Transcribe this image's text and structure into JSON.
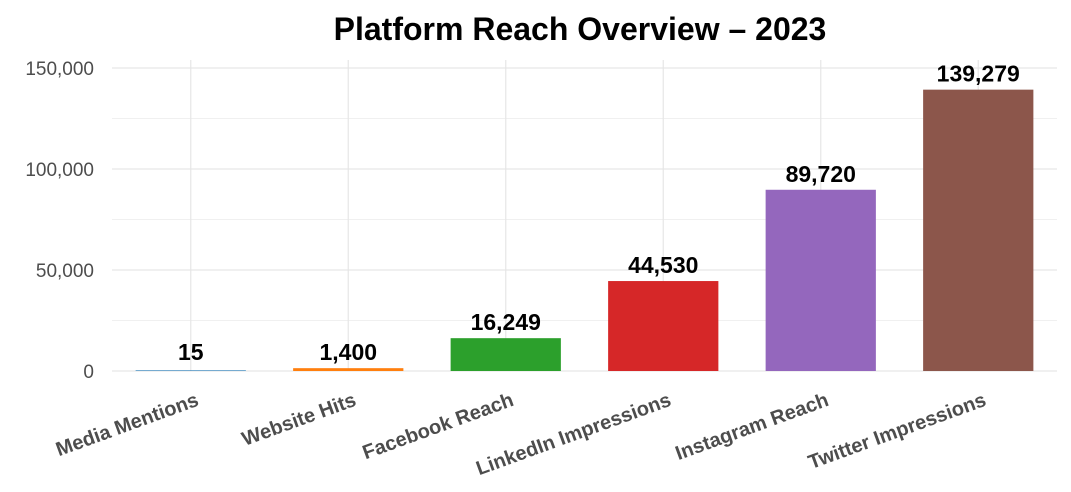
{
  "chart_data": {
    "type": "bar",
    "title": "Platform Reach Overview – 2023",
    "xlabel": "",
    "ylabel": "",
    "categories": [
      "Media Mentions",
      "Website Hits",
      "Facebook Reach",
      "LinkedIn Impressions",
      "Instagram Reach",
      "Twitter Impressions"
    ],
    "values": [
      15,
      1400,
      16249,
      44530,
      89720,
      139279
    ],
    "value_labels": [
      "15",
      "1,400",
      "16,249",
      "44,530",
      "89,720",
      "139,279"
    ],
    "colors": [
      "#1f77b4",
      "#ff7f0e",
      "#2ca02c",
      "#d62728",
      "#9467bd",
      "#8c564b"
    ],
    "ylim": [
      0,
      150000
    ],
    "yticks": [
      0,
      50000,
      100000,
      150000
    ],
    "ytick_labels": [
      "0",
      "50,000",
      "100,000",
      "150,000"
    ],
    "grid": true,
    "legend": "none"
  }
}
